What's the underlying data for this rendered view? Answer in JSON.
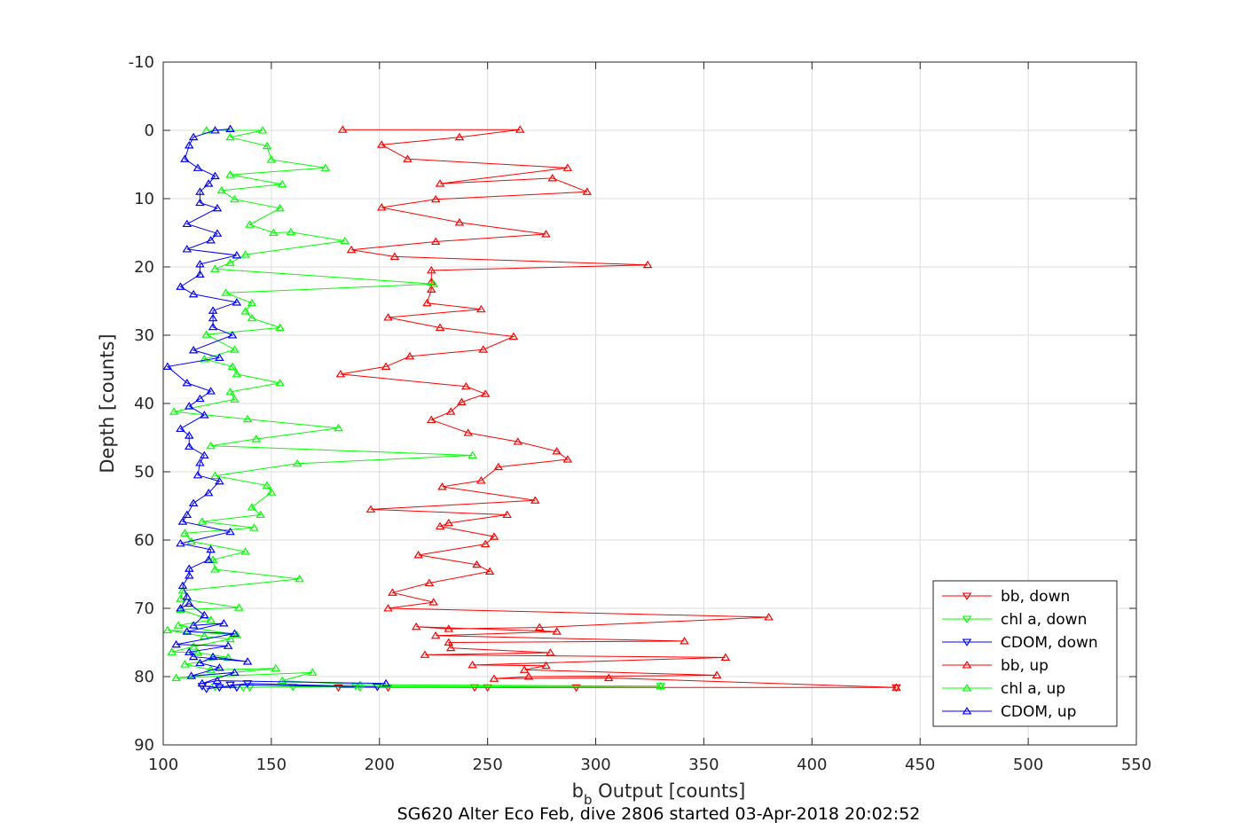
{
  "chart_data": {
    "type": "line",
    "title": "SG620 Alter Eco Feb, dive 2806 started 03-Apr-2018 20:02:52",
    "xlabel_main": "b",
    "xlabel_sub": "b",
    "xlabel_rest": " Output [counts]",
    "ylabel": "Depth [counts]",
    "xlim": [
      100,
      550
    ],
    "ylim": [
      -10,
      90
    ],
    "y_reversed": true,
    "grid": true,
    "legend_position": "bottom-right",
    "x_ticks": [
      100,
      150,
      200,
      250,
      300,
      350,
      400,
      450,
      500,
      550
    ],
    "y_ticks": [
      -10,
      0,
      10,
      20,
      30,
      40,
      50,
      60,
      70,
      80,
      90
    ],
    "series": [
      {
        "name": "bb, down",
        "color": "#ff0000",
        "marker": "triangle-down",
        "points": [
          [
            181,
            81.6
          ],
          [
            204,
            81.6
          ],
          [
            291,
            81.6
          ],
          [
            439,
            81.6
          ],
          [
            244,
            81.6
          ],
          [
            250,
            81.6
          ]
        ]
      },
      {
        "name": "chl a, down",
        "color": "#00ff00",
        "marker": "triangle-down",
        "points": [
          [
            124,
            81.5
          ],
          [
            140,
            81.6
          ],
          [
            189,
            81.4
          ],
          [
            191,
            81.6
          ],
          [
            330,
            81.4
          ],
          [
            160,
            81.5
          ],
          [
            137,
            81.6
          ]
        ]
      },
      {
        "name": "CDOM, down",
        "color": "#0000ff",
        "marker": "triangle-down",
        "points": [
          [
            118,
            81.4
          ],
          [
            126,
            81.6
          ],
          [
            134,
            81.6
          ],
          [
            131,
            81.2
          ],
          [
            199,
            81.5
          ],
          [
            139,
            81.0
          ],
          [
            120,
            81.8
          ]
        ]
      },
      {
        "name": "bb, up",
        "color": "#ff0000",
        "marker": "triangle-up",
        "points": [
          [
            439,
            81.6
          ],
          [
            306,
            80.2
          ],
          [
            253,
            80.3
          ],
          [
            269,
            80.0
          ],
          [
            356,
            79.8
          ],
          [
            267,
            79.0
          ],
          [
            277,
            78.4
          ],
          [
            243,
            78.3
          ],
          [
            360,
            77.2
          ],
          [
            221,
            76.8
          ],
          [
            279,
            76.5
          ],
          [
            233,
            75.8
          ],
          [
            232,
            75.0
          ],
          [
            341,
            74.8
          ],
          [
            226,
            74.0
          ],
          [
            282,
            73.4
          ],
          [
            217,
            72.7
          ],
          [
            232,
            73.0
          ],
          [
            274,
            72.8
          ],
          [
            380,
            71.3
          ],
          [
            204,
            70.0
          ],
          [
            225,
            69.1
          ],
          [
            206,
            67.7
          ],
          [
            223,
            66.3
          ],
          [
            251,
            64.6
          ],
          [
            245,
            63.6
          ],
          [
            218,
            62.2
          ],
          [
            249,
            60.6
          ],
          [
            253,
            59.5
          ],
          [
            228,
            58.0
          ],
          [
            232,
            57.5
          ],
          [
            259,
            56.3
          ],
          [
            196,
            55.5
          ],
          [
            272,
            54.2
          ],
          [
            229,
            52.2
          ],
          [
            247,
            51.3
          ],
          [
            255,
            49.3
          ],
          [
            287,
            48.2
          ],
          [
            282,
            47.0
          ],
          [
            264,
            45.6
          ],
          [
            241,
            44.3
          ],
          [
            224,
            42.4
          ],
          [
            233,
            41.2
          ],
          [
            238,
            39.8
          ],
          [
            249,
            38.6
          ],
          [
            240,
            37.5
          ],
          [
            182,
            35.7
          ],
          [
            203,
            34.6
          ],
          [
            214,
            33.1
          ],
          [
            248,
            32.1
          ],
          [
            262,
            30.2
          ],
          [
            228,
            28.9
          ],
          [
            204,
            27.4
          ],
          [
            247,
            26.2
          ],
          [
            222,
            25.3
          ],
          [
            224,
            23.3
          ],
          [
            224,
            22.2
          ],
          [
            224,
            20.5
          ],
          [
            324,
            19.7
          ],
          [
            207,
            18.5
          ],
          [
            187,
            17.5
          ],
          [
            226,
            16.3
          ],
          [
            277,
            15.2
          ],
          [
            237,
            13.5
          ],
          [
            201,
            11.3
          ],
          [
            226,
            10.1
          ],
          [
            296,
            9.0
          ],
          [
            280,
            7.0
          ],
          [
            228,
            7.8
          ],
          [
            287,
            5.5
          ],
          [
            213,
            4.2
          ],
          [
            201,
            2.1
          ],
          [
            237,
            1.0
          ],
          [
            265,
            -0.1
          ],
          [
            183,
            -0.1
          ]
        ]
      },
      {
        "name": "chl a, up",
        "color": "#00ff00",
        "marker": "triangle-up",
        "points": [
          [
            330,
            81.4
          ],
          [
            191,
            81.2
          ],
          [
            155,
            80.6
          ],
          [
            169,
            79.4
          ],
          [
            106,
            80.2
          ],
          [
            152,
            78.8
          ],
          [
            122,
            79.0
          ],
          [
            110,
            78.2
          ],
          [
            130,
            77.2
          ],
          [
            116,
            76.5
          ],
          [
            104,
            76.4
          ],
          [
            114,
            75.6
          ],
          [
            131,
            74.5
          ],
          [
            119,
            74.1
          ],
          [
            102,
            73.2
          ],
          [
            134,
            73.9
          ],
          [
            107,
            72.5
          ],
          [
            122,
            71.7
          ],
          [
            108,
            70.2
          ],
          [
            135,
            69.9
          ],
          [
            108,
            68.6
          ],
          [
            109,
            67.4
          ],
          [
            163,
            65.7
          ],
          [
            124,
            64.3
          ],
          [
            123,
            62.9
          ],
          [
            138,
            61.7
          ],
          [
            113,
            60.2
          ],
          [
            110,
            59.0
          ],
          [
            142,
            58.2
          ],
          [
            118,
            57.3
          ],
          [
            145,
            56.3
          ],
          [
            141,
            55.2
          ],
          [
            150,
            53.0
          ],
          [
            148,
            52.0
          ],
          [
            124,
            50.6
          ],
          [
            162,
            48.8
          ],
          [
            243,
            47.6
          ],
          [
            122,
            46.2
          ],
          [
            143,
            45.2
          ],
          [
            181,
            43.6
          ],
          [
            139,
            42.3
          ],
          [
            105,
            41.2
          ],
          [
            133,
            39.4
          ],
          [
            131,
            38.3
          ],
          [
            154,
            37.0
          ],
          [
            134,
            35.7
          ],
          [
            132,
            34.6
          ],
          [
            119,
            33.5
          ],
          [
            133,
            32.1
          ],
          [
            120,
            29.9
          ],
          [
            154,
            28.9
          ],
          [
            141,
            27.5
          ],
          [
            138,
            26.5
          ],
          [
            141,
            25.3
          ],
          [
            129,
            23.8
          ],
          [
            225,
            22.5
          ],
          [
            124,
            20.3
          ],
          [
            131,
            19.4
          ],
          [
            138,
            18.2
          ],
          [
            184,
            16.2
          ],
          [
            159,
            14.9
          ],
          [
            151,
            15.0
          ],
          [
            140,
            13.8
          ],
          [
            154,
            11.4
          ],
          [
            133,
            10.1
          ],
          [
            127,
            8.8
          ],
          [
            155,
            7.9
          ],
          [
            131,
            6.5
          ],
          [
            175,
            5.5
          ],
          [
            150,
            4.3
          ],
          [
            148,
            2.3
          ],
          [
            131,
            1.0
          ],
          [
            146,
            0.0
          ],
          [
            120,
            0.0
          ]
        ]
      },
      {
        "name": "CDOM, up",
        "color": "#0000ff",
        "marker": "triangle-up",
        "points": [
          [
            203,
            81.0
          ],
          [
            125,
            80.6
          ],
          [
            118,
            81.0
          ],
          [
            133,
            79.4
          ],
          [
            113,
            79.9
          ],
          [
            126,
            78.7
          ],
          [
            117,
            78.0
          ],
          [
            123,
            77.1
          ],
          [
            139,
            77.8
          ],
          [
            114,
            77.1
          ],
          [
            112,
            76.4
          ],
          [
            130,
            75.5
          ],
          [
            106,
            75.3
          ],
          [
            133,
            73.7
          ],
          [
            111,
            73.4
          ],
          [
            128,
            72.2
          ],
          [
            114,
            72.5
          ],
          [
            119,
            71.0
          ],
          [
            112,
            69.3
          ],
          [
            108,
            70.0
          ],
          [
            111,
            68.3
          ],
          [
            109,
            66.7
          ],
          [
            112,
            65.2
          ],
          [
            112,
            64.2
          ],
          [
            121,
            62.9
          ],
          [
            122,
            61.4
          ],
          [
            108,
            60.5
          ],
          [
            131,
            58.8
          ],
          [
            109,
            57.3
          ],
          [
            111,
            56.3
          ],
          [
            114,
            54.6
          ],
          [
            121,
            53.1
          ],
          [
            126,
            51.4
          ],
          [
            116,
            50.5
          ],
          [
            117,
            48.7
          ],
          [
            119,
            47.6
          ],
          [
            112,
            46.3
          ],
          [
            112,
            44.7
          ],
          [
            108,
            43.7
          ],
          [
            119,
            41.7
          ],
          [
            112,
            40.4
          ],
          [
            117,
            39.3
          ],
          [
            122,
            38.2
          ],
          [
            111,
            37.0
          ],
          [
            102,
            34.6
          ],
          [
            126,
            33.3
          ],
          [
            114,
            32.2
          ],
          [
            132,
            30.0
          ],
          [
            123,
            28.8
          ],
          [
            123,
            27.5
          ],
          [
            123,
            26.4
          ],
          [
            134,
            25.2
          ],
          [
            114,
            24.0
          ],
          [
            108,
            22.9
          ],
          [
            117,
            21.1
          ],
          [
            117,
            19.6
          ],
          [
            134,
            18.3
          ],
          [
            111,
            17.4
          ],
          [
            122,
            16.1
          ],
          [
            125,
            15.1
          ],
          [
            111,
            13.7
          ],
          [
            125,
            11.4
          ],
          [
            117,
            10.6
          ],
          [
            117,
            9.0
          ],
          [
            121,
            7.8
          ],
          [
            124,
            6.7
          ],
          [
            116,
            5.5
          ],
          [
            110,
            4.2
          ],
          [
            112,
            2.2
          ],
          [
            114,
            1.0
          ],
          [
            124,
            0.0
          ],
          [
            131,
            -0.2
          ]
        ]
      }
    ]
  }
}
